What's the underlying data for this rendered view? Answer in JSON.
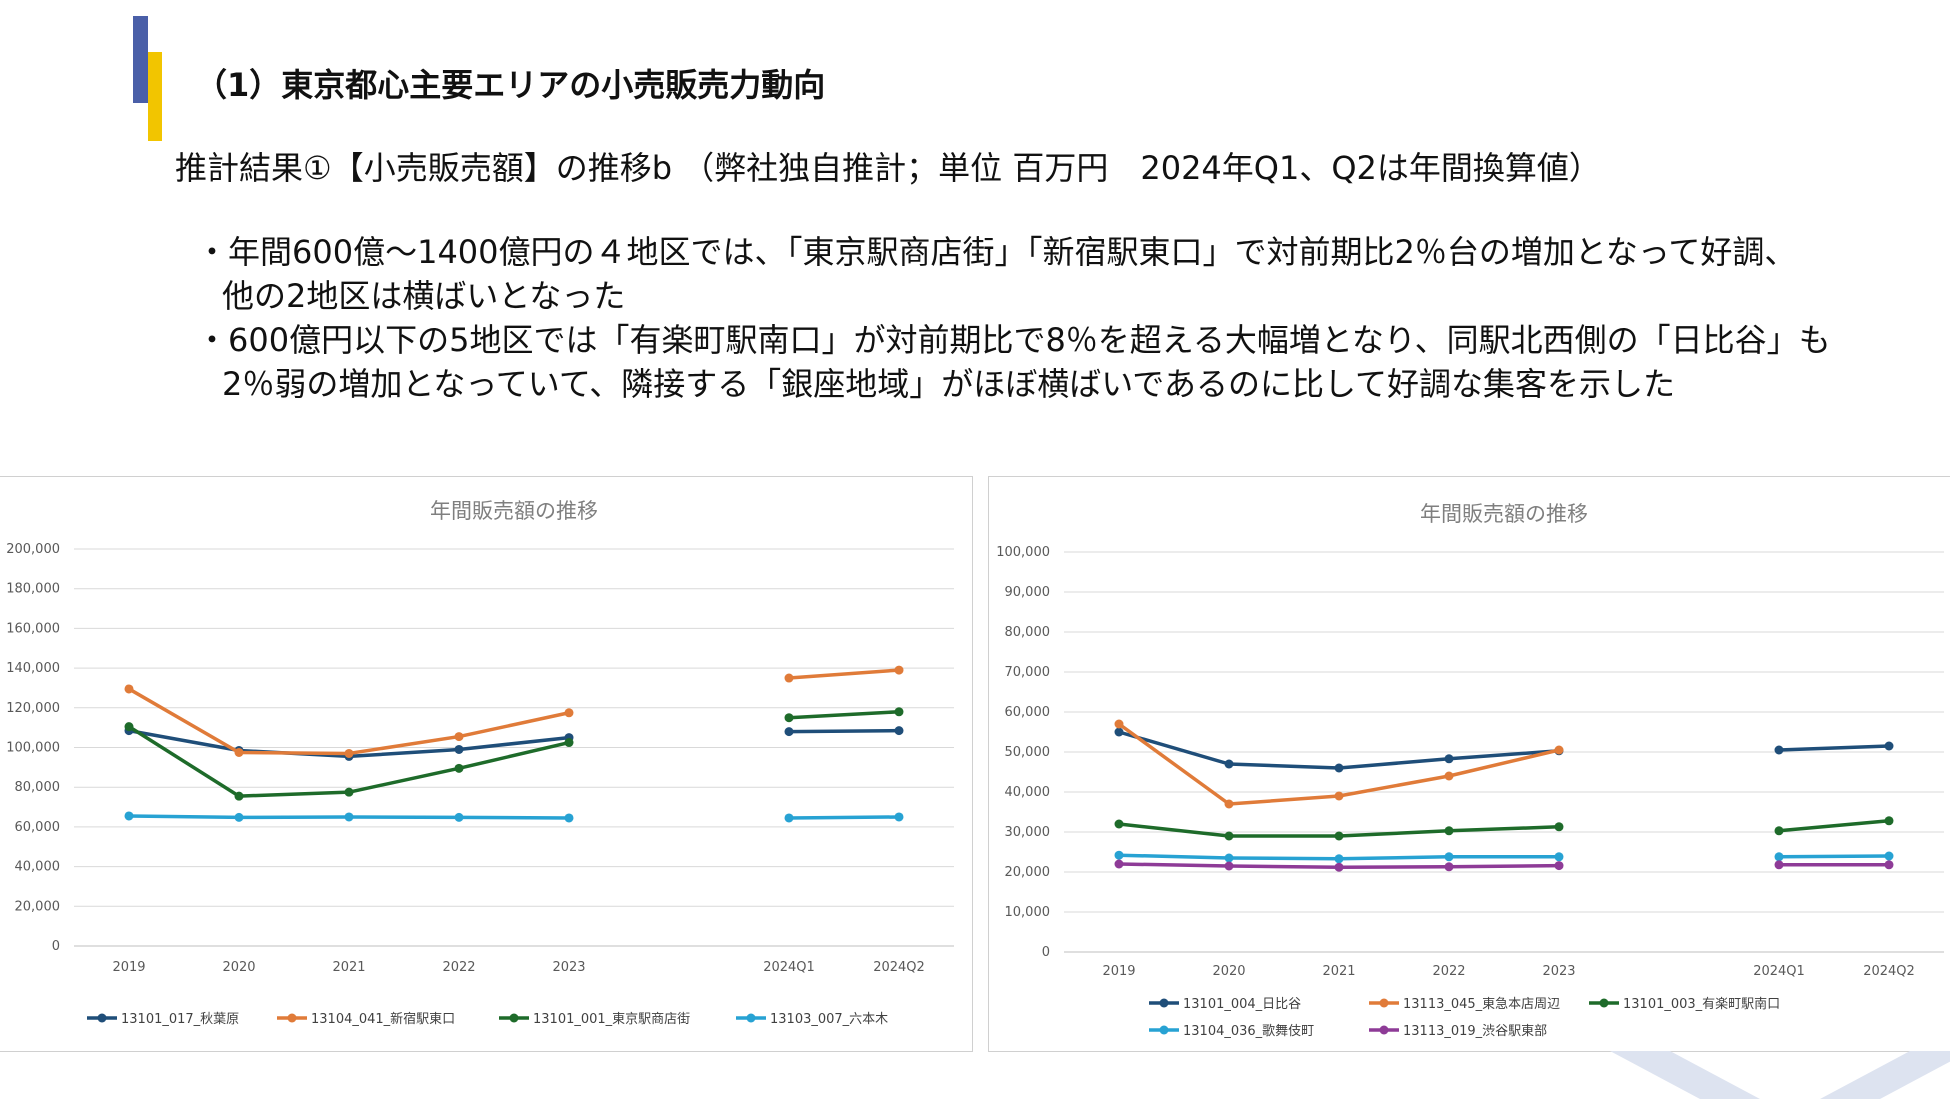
{
  "heading": "（1）東京都心主要エリアの小売販売力動向",
  "subheading": "推計結果①【小売販売額】の推移b （弊社独自推計；単位 百万円　2024年Q1、Q2は年間換算値）",
  "bullets": [
    {
      "line1": "・年間600億～1400億円の４地区では、「東京駅商店街」「新宿駅東口」で対前期比2％台の増加となって好調、",
      "line2": "他の2地区は横ばいとなった"
    },
    {
      "line1": "・600億円以下の5地区では「有楽町駅南口」が対前期比で8％を超える大幅増となり、同駅北西側の「日比谷」も",
      "line2": "2％弱の増加となっていて、隣接する「銀座地域」がほぼ横ばいであるのに比して好調な集客を示した"
    }
  ],
  "chart_data": [
    {
      "type": "line",
      "title": "年間販売額の推移",
      "categories": [
        "2019",
        "2020",
        "2021",
        "2022",
        "2023",
        "",
        "2024Q1",
        "2024Q2"
      ],
      "ylim": [
        0,
        200000
      ],
      "yticks": [
        "0",
        "20,000",
        "40,000",
        "60,000",
        "80,000",
        "100,000",
        "120,000",
        "140,000",
        "160,000",
        "180,000",
        "200,000"
      ],
      "grid": true,
      "legend": "bottom",
      "series": [
        {
          "name": "13101_017_秋葉原",
          "color": "#1f4e79",
          "values": [
            108500,
            98500,
            95500,
            99000,
            105000,
            null,
            108000,
            108500
          ]
        },
        {
          "name": "13104_041_新宿駅東口",
          "color": "#e07b39",
          "values": [
            129500,
            97500,
            97000,
            105500,
            117500,
            null,
            135000,
            139000
          ]
        },
        {
          "name": "13101_001_東京駅商店街",
          "color": "#1e6b2a",
          "values": [
            110500,
            75500,
            77500,
            89500,
            102500,
            null,
            115000,
            118000
          ]
        },
        {
          "name": "13103_007_六本木",
          "color": "#27a2d3",
          "values": [
            65500,
            64800,
            65000,
            64800,
            64500,
            null,
            64500,
            65000
          ]
        }
      ]
    },
    {
      "type": "line",
      "title": "年間販売額の推移",
      "categories": [
        "2019",
        "2020",
        "2021",
        "2022",
        "2023",
        "",
        "2024Q1",
        "2024Q2"
      ],
      "ylim": [
        0,
        100000
      ],
      "yticks": [
        "0",
        "10,000",
        "20,000",
        "30,000",
        "40,000",
        "50,000",
        "60,000",
        "70,000",
        "80,000",
        "90,000",
        "100,000"
      ],
      "grid": true,
      "legend": "bottom",
      "series": [
        {
          "name": "13101_004_日比谷",
          "color": "#1f4e79",
          "values": [
            55000,
            47000,
            46000,
            48300,
            50300,
            null,
            50500,
            51500
          ]
        },
        {
          "name": "13113_045_東急本店周辺",
          "color": "#e07b39",
          "values": [
            57000,
            37000,
            39000,
            44000,
            50500,
            null,
            null,
            null
          ]
        },
        {
          "name": "13101_003_有楽町駅南口",
          "color": "#1e6b2a",
          "values": [
            32000,
            29000,
            29000,
            30300,
            31300,
            null,
            30300,
            32800
          ]
        },
        {
          "name": "13104_036_歌舞伎町",
          "color": "#27a2d3",
          "values": [
            24200,
            23500,
            23300,
            23800,
            23800,
            null,
            23800,
            24000
          ]
        },
        {
          "name": "13113_019_渋谷駅東部",
          "color": "#8e3b97",
          "values": [
            22000,
            21500,
            21200,
            21300,
            21600,
            null,
            21800,
            21800
          ]
        }
      ]
    }
  ]
}
